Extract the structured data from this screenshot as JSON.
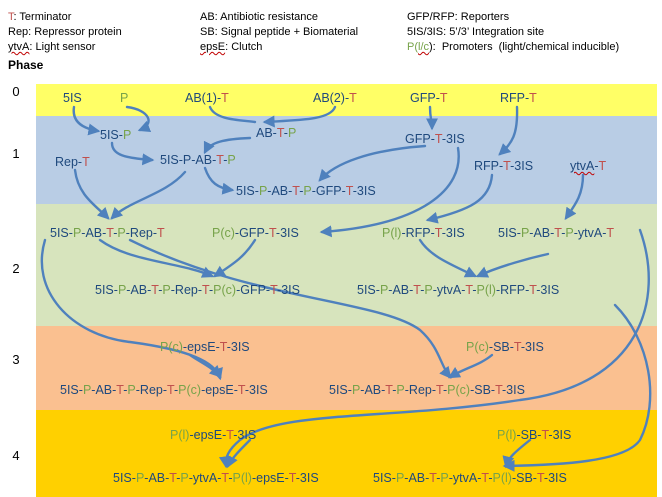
{
  "colors": {
    "blue": "#1F497D",
    "red": "#C0504D",
    "green": "#77A34A",
    "arrow": "#4F81BD",
    "phase0": "#FFFF66",
    "phase1": "#B9CDE5",
    "phase2": "#D7E4BD",
    "phase3": "#FAC090",
    "phase4": "#FFD000"
  },
  "legend": {
    "col1": [
      {
        "segments": [
          {
            "text": "T",
            "color": "red"
          },
          {
            "text": ": Terminator",
            "color": "black"
          }
        ]
      },
      {
        "segments": [
          {
            "text": "Rep: Repressor protein",
            "color": "black"
          }
        ]
      },
      {
        "segments": [
          {
            "text": "ytvA",
            "color": "black",
            "underline": true
          },
          {
            "text": ": Light sensor",
            "color": "black"
          }
        ]
      }
    ],
    "col2": [
      {
        "segments": [
          {
            "text": "AB: Antibiotic resistance",
            "color": "black"
          }
        ]
      },
      {
        "segments": [
          {
            "text": "SB: Signal peptide + Biomaterial",
            "color": "black"
          }
        ]
      },
      {
        "segments": [
          {
            "text": "epsE",
            "color": "black",
            "underline": true
          },
          {
            "text": ": Clutch",
            "color": "black"
          }
        ]
      }
    ],
    "col3": [
      {
        "segments": [
          {
            "text": "GFP/RFP: Reporters",
            "color": "black"
          }
        ]
      },
      {
        "segments": [
          {
            "text": "5IS/3IS: 5’/3’ Integration site",
            "color": "black"
          }
        ]
      },
      {
        "segments": [
          {
            "text": "P(",
            "color": "green"
          },
          {
            "text": "l/c",
            "color": "green",
            "underline": true
          },
          {
            "text": "):  Promoters  (light/chemical inducible)",
            "color": "black"
          }
        ]
      }
    ]
  },
  "phase_title": "Phase",
  "phases": [
    "0",
    "1",
    "2",
    "3",
    "4"
  ],
  "nodes": [
    {
      "id": "p0-5is",
      "segments": [
        {
          "t": "5IS",
          "c": "blue"
        }
      ]
    },
    {
      "id": "p0-p",
      "segments": [
        {
          "t": "P",
          "c": "green"
        }
      ]
    },
    {
      "id": "p0-ab1t",
      "segments": [
        {
          "t": "AB(1)-",
          "c": "blue"
        },
        {
          "t": "T",
          "c": "red"
        }
      ]
    },
    {
      "id": "p0-ab2t",
      "segments": [
        {
          "t": "AB(2)-",
          "c": "blue"
        },
        {
          "t": "T",
          "c": "red"
        }
      ]
    },
    {
      "id": "p0-gfpt",
      "segments": [
        {
          "t": "GFP-",
          "c": "blue"
        },
        {
          "t": "T",
          "c": "red"
        }
      ]
    },
    {
      "id": "p0-rfpt",
      "segments": [
        {
          "t": "RFP-",
          "c": "blue"
        },
        {
          "t": "T",
          "c": "red"
        }
      ]
    },
    {
      "id": "p1-5isp",
      "segments": [
        {
          "t": "5IS-",
          "c": "blue"
        },
        {
          "t": "P",
          "c": "green"
        }
      ]
    },
    {
      "id": "p1-abtp",
      "segments": [
        {
          "t": "AB-",
          "c": "blue"
        },
        {
          "t": "T",
          "c": "red"
        },
        {
          "t": "-",
          "c": "blue"
        },
        {
          "t": "P",
          "c": "green"
        }
      ]
    },
    {
      "id": "p1-gfpt3is",
      "segments": [
        {
          "t": "GFP-",
          "c": "blue"
        },
        {
          "t": "T",
          "c": "red"
        },
        {
          "t": "-3IS",
          "c": "blue"
        }
      ]
    },
    {
      "id": "p1-rept",
      "segments": [
        {
          "t": "Rep-",
          "c": "blue"
        },
        {
          "t": "T",
          "c": "red"
        }
      ]
    },
    {
      "id": "p1-5ispabtp",
      "segments": [
        {
          "t": "5IS-P-AB-",
          "c": "blue"
        },
        {
          "t": "T",
          "c": "red"
        },
        {
          "t": "-",
          "c": "blue"
        },
        {
          "t": "P",
          "c": "green"
        }
      ]
    },
    {
      "id": "p1-rfpt3is",
      "segments": [
        {
          "t": "RFP-",
          "c": "blue"
        },
        {
          "t": "T",
          "c": "red"
        },
        {
          "t": "-3IS",
          "c": "blue"
        }
      ]
    },
    {
      "id": "p1-ytvat",
      "segments": [
        {
          "t": "ytvA",
          "c": "blue",
          "u": true
        },
        {
          "t": "-",
          "c": "blue"
        },
        {
          "t": "T",
          "c": "red"
        }
      ]
    },
    {
      "id": "p1-long",
      "segments": [
        {
          "t": "5IS-",
          "c": "blue"
        },
        {
          "t": "P",
          "c": "green"
        },
        {
          "t": "-AB-",
          "c": "blue"
        },
        {
          "t": "T",
          "c": "red"
        },
        {
          "t": "-",
          "c": "blue"
        },
        {
          "t": "P",
          "c": "green"
        },
        {
          "t": "-GFP-",
          "c": "blue"
        },
        {
          "t": "T",
          "c": "red"
        },
        {
          "t": "-3IS",
          "c": "blue"
        }
      ]
    },
    {
      "id": "p2-reprt",
      "segments": [
        {
          "t": "5IS-",
          "c": "blue"
        },
        {
          "t": "P",
          "c": "green"
        },
        {
          "t": "-AB-",
          "c": "blue"
        },
        {
          "t": "T",
          "c": "red"
        },
        {
          "t": "-",
          "c": "blue"
        },
        {
          "t": "P",
          "c": "green"
        },
        {
          "t": "-Rep-",
          "c": "blue"
        },
        {
          "t": "T",
          "c": "red"
        }
      ]
    },
    {
      "id": "p2-pcgfp",
      "segments": [
        {
          "t": "P(c)",
          "c": "green"
        },
        {
          "t": "-GFP-",
          "c": "blue"
        },
        {
          "t": "T",
          "c": "red"
        },
        {
          "t": "-3IS",
          "c": "blue"
        }
      ]
    },
    {
      "id": "p2-plrfp",
      "segments": [
        {
          "t": "P(l)",
          "c": "green"
        },
        {
          "t": "-RFP-",
          "c": "blue"
        },
        {
          "t": "T",
          "c": "red"
        },
        {
          "t": "-3IS",
          "c": "blue"
        }
      ]
    },
    {
      "id": "p2-ytva",
      "segments": [
        {
          "t": "5IS-",
          "c": "blue"
        },
        {
          "t": "P",
          "c": "green"
        },
        {
          "t": "-AB-",
          "c": "blue"
        },
        {
          "t": "T",
          "c": "red"
        },
        {
          "t": "-",
          "c": "blue"
        },
        {
          "t": "P",
          "c": "green"
        },
        {
          "t": "-ytvA-",
          "c": "blue"
        },
        {
          "t": "T",
          "c": "red"
        }
      ]
    },
    {
      "id": "p2-outgfp",
      "segments": [
        {
          "t": "5IS-",
          "c": "blue"
        },
        {
          "t": "P",
          "c": "green"
        },
        {
          "t": "-AB-",
          "c": "blue"
        },
        {
          "t": "T",
          "c": "red"
        },
        {
          "t": "-",
          "c": "blue"
        },
        {
          "t": "P",
          "c": "green"
        },
        {
          "t": "-Rep-",
          "c": "blue"
        },
        {
          "t": "T",
          "c": "red"
        },
        {
          "t": "-",
          "c": "blue"
        },
        {
          "t": "P(c)",
          "c": "green"
        },
        {
          "t": "-GFP-",
          "c": "blue"
        },
        {
          "t": "T",
          "c": "red"
        },
        {
          "t": "-3IS",
          "c": "blue"
        }
      ]
    },
    {
      "id": "p2-outrfp",
      "segments": [
        {
          "t": "5IS-",
          "c": "blue"
        },
        {
          "t": "P",
          "c": "green"
        },
        {
          "t": "-AB-",
          "c": "blue"
        },
        {
          "t": "T",
          "c": "red"
        },
        {
          "t": "-",
          "c": "blue"
        },
        {
          "t": "P",
          "c": "green"
        },
        {
          "t": "-ytvA-",
          "c": "blue"
        },
        {
          "t": "T",
          "c": "red"
        },
        {
          "t": "-",
          "c": "blue"
        },
        {
          "t": "P(l)",
          "c": "green"
        },
        {
          "t": "-RFP-",
          "c": "blue"
        },
        {
          "t": "T",
          "c": "red"
        },
        {
          "t": "-3IS",
          "c": "blue"
        }
      ]
    },
    {
      "id": "p3-pceps",
      "segments": [
        {
          "t": "P(c)",
          "c": "green"
        },
        {
          "t": "-epsE-",
          "c": "blue"
        },
        {
          "t": "T",
          "c": "red"
        },
        {
          "t": "-3IS",
          "c": "blue"
        }
      ]
    },
    {
      "id": "p3-pcsb",
      "segments": [
        {
          "t": "P(c)",
          "c": "green"
        },
        {
          "t": "-SB-",
          "c": "blue"
        },
        {
          "t": "T",
          "c": "red"
        },
        {
          "t": "-3IS",
          "c": "blue"
        }
      ]
    },
    {
      "id": "p3-outeps",
      "segments": [
        {
          "t": "5IS-",
          "c": "blue"
        },
        {
          "t": "P",
          "c": "green"
        },
        {
          "t": "-AB-",
          "c": "blue"
        },
        {
          "t": "T",
          "c": "red"
        },
        {
          "t": "-",
          "c": "blue"
        },
        {
          "t": "P",
          "c": "green"
        },
        {
          "t": "-Rep-",
          "c": "blue"
        },
        {
          "t": "T",
          "c": "red"
        },
        {
          "t": "-",
          "c": "blue"
        },
        {
          "t": "P(c)",
          "c": "green"
        },
        {
          "t": "-epsE-",
          "c": "blue"
        },
        {
          "t": "T",
          "c": "red"
        },
        {
          "t": "-3IS",
          "c": "blue"
        }
      ]
    },
    {
      "id": "p3-outsb",
      "segments": [
        {
          "t": "5IS-",
          "c": "blue"
        },
        {
          "t": "P",
          "c": "green"
        },
        {
          "t": "-AB-",
          "c": "blue"
        },
        {
          "t": "T",
          "c": "red"
        },
        {
          "t": "-",
          "c": "blue"
        },
        {
          "t": "P",
          "c": "green"
        },
        {
          "t": "-Rep-",
          "c": "blue"
        },
        {
          "t": "T",
          "c": "red"
        },
        {
          "t": "-",
          "c": "blue"
        },
        {
          "t": "P(c)",
          "c": "green"
        },
        {
          "t": "-SB-",
          "c": "blue"
        },
        {
          "t": "T",
          "c": "red"
        },
        {
          "t": "-3IS",
          "c": "blue"
        }
      ]
    },
    {
      "id": "p4-pleps",
      "segments": [
        {
          "t": "P(l)",
          "c": "green"
        },
        {
          "t": "-epsE-",
          "c": "blue"
        },
        {
          "t": "T",
          "c": "red"
        },
        {
          "t": "-3IS",
          "c": "blue"
        }
      ]
    },
    {
      "id": "p4-plsb",
      "segments": [
        {
          "t": "P(l)",
          "c": "green"
        },
        {
          "t": "-SB-",
          "c": "blue"
        },
        {
          "t": "T",
          "c": "red"
        },
        {
          "t": "-3IS",
          "c": "blue"
        }
      ]
    },
    {
      "id": "p4-outeps",
      "segments": [
        {
          "t": "5IS-",
          "c": "blue"
        },
        {
          "t": "P",
          "c": "green"
        },
        {
          "t": "-AB-",
          "c": "blue"
        },
        {
          "t": "T",
          "c": "red"
        },
        {
          "t": "-",
          "c": "blue"
        },
        {
          "t": "P",
          "c": "green"
        },
        {
          "t": "-ytvA-",
          "c": "blue"
        },
        {
          "t": "T",
          "c": "red"
        },
        {
          "t": "-",
          "c": "blue"
        },
        {
          "t": "P(l)",
          "c": "green"
        },
        {
          "t": "-epsE-",
          "c": "blue"
        },
        {
          "t": "T",
          "c": "red"
        },
        {
          "t": "-3IS",
          "c": "blue"
        }
      ]
    },
    {
      "id": "p4-outsb",
      "segments": [
        {
          "t": "5IS-",
          "c": "blue"
        },
        {
          "t": "P",
          "c": "green"
        },
        {
          "t": "-AB-",
          "c": "blue"
        },
        {
          "t": "T",
          "c": "red"
        },
        {
          "t": "-",
          "c": "blue"
        },
        {
          "t": "P",
          "c": "green"
        },
        {
          "t": "-ytvA-",
          "c": "blue"
        },
        {
          "t": "T",
          "c": "red"
        },
        {
          "t": "-",
          "c": "blue"
        },
        {
          "t": "P(l)",
          "c": "green"
        },
        {
          "t": "-SB-",
          "c": "blue"
        },
        {
          "t": "T",
          "c": "red"
        },
        {
          "t": "-3IS",
          "c": "blue"
        }
      ]
    }
  ]
}
